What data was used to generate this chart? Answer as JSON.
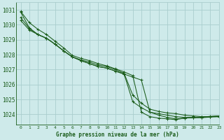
{
  "title": "Graphe pression niveau de la mer (hPa)",
  "bg_color": "#ceeaea",
  "grid_color": "#aacece",
  "line_color": "#1a5c1a",
  "xlim": [
    -0.5,
    23
  ],
  "ylim": [
    1023.3,
    1031.5
  ],
  "yticks": [
    1024,
    1025,
    1026,
    1027,
    1028,
    1029,
    1030,
    1031
  ],
  "xticks": [
    0,
    1,
    2,
    3,
    4,
    5,
    6,
    7,
    8,
    9,
    10,
    11,
    12,
    13,
    14,
    15,
    16,
    17,
    18,
    19,
    20,
    21,
    22,
    23
  ],
  "series": [
    [
      1030.9,
      1030.15,
      1029.7,
      1029.35,
      1028.9,
      1028.45,
      1027.95,
      1027.75,
      1027.6,
      1027.4,
      1027.25,
      1027.05,
      1026.85,
      1026.6,
      1024.15,
      1023.85,
      1023.75,
      1023.7,
      1023.65,
      1023.75,
      1023.78,
      1023.8,
      1023.85,
      1023.9
    ],
    [
      1030.5,
      1029.75,
      1029.35,
      1029.1,
      1028.7,
      1028.25,
      1027.85,
      1027.65,
      1027.5,
      1027.3,
      1027.2,
      1027.0,
      1026.75,
      1025.3,
      1024.75,
      1024.35,
      1024.2,
      1024.1,
      1024.05,
      1023.95,
      1023.9,
      1023.85,
      1023.85,
      1023.85
    ],
    [
      1030.3,
      1029.65,
      1029.35,
      1029.1,
      1028.7,
      1028.25,
      1027.85,
      1027.6,
      1027.4,
      1027.2,
      1027.1,
      1026.9,
      1026.7,
      1024.85,
      1024.45,
      1024.15,
      1024.05,
      1023.95,
      1023.85,
      1023.8,
      1023.8,
      1023.78,
      1023.82,
      1023.85
    ],
    [
      1030.85,
      1029.8,
      1029.35,
      1029.1,
      1028.7,
      1028.25,
      1027.85,
      1027.6,
      1027.4,
      1027.2,
      1027.1,
      1026.9,
      1026.7,
      1026.5,
      1026.3,
      1024.15,
      1023.95,
      1023.8,
      1023.7,
      1023.75,
      1023.78,
      1023.82,
      1023.87,
      1023.9
    ]
  ]
}
